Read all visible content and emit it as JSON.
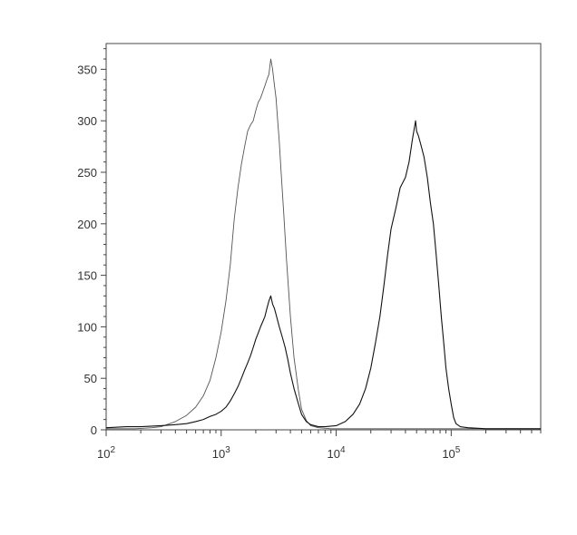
{
  "chart_data": {
    "type": "line",
    "title": "",
    "xlabel": "",
    "ylabel": "",
    "x_scale": "log",
    "xlim": [
      100,
      600000
    ],
    "ylim": [
      0,
      375
    ],
    "grid": false,
    "legend": "none",
    "x_ticks": [
      {
        "value": 100,
        "base": "10",
        "exp": "2"
      },
      {
        "value": 1000,
        "base": "10",
        "exp": "3"
      },
      {
        "value": 10000,
        "base": "10",
        "exp": "4"
      },
      {
        "value": 100000,
        "base": "10",
        "exp": "5"
      }
    ],
    "y_ticks": [
      0,
      50,
      100,
      150,
      200,
      250,
      300,
      350
    ],
    "series": [
      {
        "color": "#555555",
        "stroke_width": 0.9,
        "points": [
          [
            100,
            1
          ],
          [
            180,
            1
          ],
          [
            250,
            2
          ],
          [
            300,
            3
          ],
          [
            400,
            8
          ],
          [
            500,
            14
          ],
          [
            600,
            22
          ],
          [
            700,
            33
          ],
          [
            800,
            48
          ],
          [
            900,
            70
          ],
          [
            1000,
            95
          ],
          [
            1100,
            125
          ],
          [
            1200,
            160
          ],
          [
            1300,
            205
          ],
          [
            1400,
            235
          ],
          [
            1500,
            258
          ],
          [
            1600,
            275
          ],
          [
            1700,
            290
          ],
          [
            1800,
            296
          ],
          [
            1900,
            300
          ],
          [
            2000,
            310
          ],
          [
            2100,
            318
          ],
          [
            2200,
            322
          ],
          [
            2300,
            328
          ],
          [
            2400,
            334
          ],
          [
            2500,
            340
          ],
          [
            2600,
            345
          ],
          [
            2700,
            360
          ],
          [
            2800,
            350
          ],
          [
            2900,
            335
          ],
          [
            3000,
            322
          ],
          [
            3100,
            300
          ],
          [
            3200,
            280
          ],
          [
            3300,
            255
          ],
          [
            3500,
            210
          ],
          [
            3700,
            165
          ],
          [
            4000,
            110
          ],
          [
            4300,
            70
          ],
          [
            4700,
            38
          ],
          [
            5000,
            20
          ],
          [
            5500,
            9
          ],
          [
            6000,
            4
          ],
          [
            7000,
            2
          ],
          [
            9000,
            1
          ],
          [
            100000,
            1
          ],
          [
            600000,
            1
          ]
        ]
      },
      {
        "color": "#111111",
        "stroke_width": 1.1,
        "points": [
          [
            100,
            2
          ],
          [
            150,
            3
          ],
          [
            200,
            3
          ],
          [
            300,
            4
          ],
          [
            400,
            5
          ],
          [
            500,
            6
          ],
          [
            600,
            8
          ],
          [
            700,
            10
          ],
          [
            800,
            13
          ],
          [
            900,
            15
          ],
          [
            1000,
            18
          ],
          [
            1100,
            22
          ],
          [
            1200,
            28
          ],
          [
            1300,
            35
          ],
          [
            1400,
            42
          ],
          [
            1500,
            50
          ],
          [
            1600,
            58
          ],
          [
            1700,
            65
          ],
          [
            1800,
            72
          ],
          [
            1900,
            80
          ],
          [
            2000,
            88
          ],
          [
            2100,
            94
          ],
          [
            2200,
            100
          ],
          [
            2300,
            105
          ],
          [
            2400,
            110
          ],
          [
            2500,
            118
          ],
          [
            2600,
            125
          ],
          [
            2700,
            130
          ],
          [
            2800,
            122
          ],
          [
            2900,
            118
          ],
          [
            3000,
            112
          ],
          [
            3200,
            100
          ],
          [
            3400,
            90
          ],
          [
            3600,
            80
          ],
          [
            3800,
            68
          ],
          [
            4000,
            55
          ],
          [
            4300,
            40
          ],
          [
            4700,
            25
          ],
          [
            5000,
            15
          ],
          [
            5500,
            8
          ],
          [
            6000,
            5
          ],
          [
            7000,
            3
          ],
          [
            8000,
            3
          ],
          [
            10000,
            4
          ],
          [
            12000,
            8
          ],
          [
            14000,
            15
          ],
          [
            16000,
            25
          ],
          [
            18000,
            40
          ],
          [
            20000,
            60
          ],
          [
            22000,
            85
          ],
          [
            24000,
            110
          ],
          [
            26000,
            140
          ],
          [
            28000,
            170
          ],
          [
            30000,
            195
          ],
          [
            33000,
            215
          ],
          [
            36000,
            235
          ],
          [
            40000,
            245
          ],
          [
            43000,
            260
          ],
          [
            46000,
            282
          ],
          [
            49000,
            300
          ],
          [
            50000,
            290
          ],
          [
            52000,
            285
          ],
          [
            55000,
            275
          ],
          [
            58000,
            265
          ],
          [
            62000,
            245
          ],
          [
            66000,
            220
          ],
          [
            70000,
            200
          ],
          [
            74000,
            170
          ],
          [
            78000,
            140
          ],
          [
            82000,
            110
          ],
          [
            86000,
            85
          ],
          [
            90000,
            60
          ],
          [
            95000,
            40
          ],
          [
            100000,
            25
          ],
          [
            105000,
            12
          ],
          [
            110000,
            6
          ],
          [
            120000,
            3
          ],
          [
            140000,
            2
          ],
          [
            200000,
            1
          ],
          [
            600000,
            1
          ]
        ]
      }
    ]
  }
}
